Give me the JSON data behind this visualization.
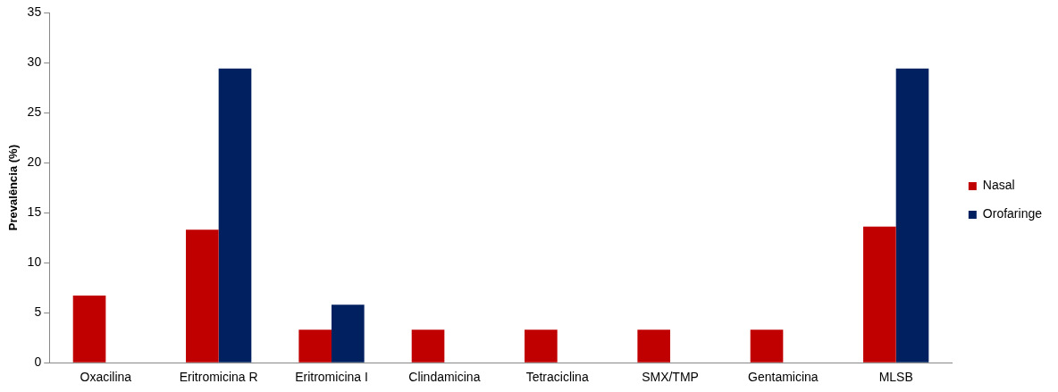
{
  "chart_data": {
    "type": "bar",
    "ylabel": "Prevalência (%)",
    "categories": [
      "Oxacilina",
      "Eritromicina R",
      "Eritromicina I",
      "Clindamicina",
      "Tetraciclina",
      "SMX/TMP",
      "Gentamicina",
      "MLSB"
    ],
    "series": [
      {
        "name": "Nasal",
        "color": "#c00000",
        "values": [
          6.7,
          13.3,
          3.3,
          3.3,
          3.3,
          3.3,
          3.3,
          13.6
        ]
      },
      {
        "name": "Orofaringe",
        "color": "#002060",
        "values": [
          null,
          29.4,
          5.8,
          null,
          null,
          null,
          null,
          29.4
        ]
      }
    ],
    "ylim": [
      0,
      35
    ],
    "yticks": [
      0,
      5,
      10,
      15,
      20,
      25,
      30,
      35
    ],
    "grid": false,
    "legend": "right"
  }
}
